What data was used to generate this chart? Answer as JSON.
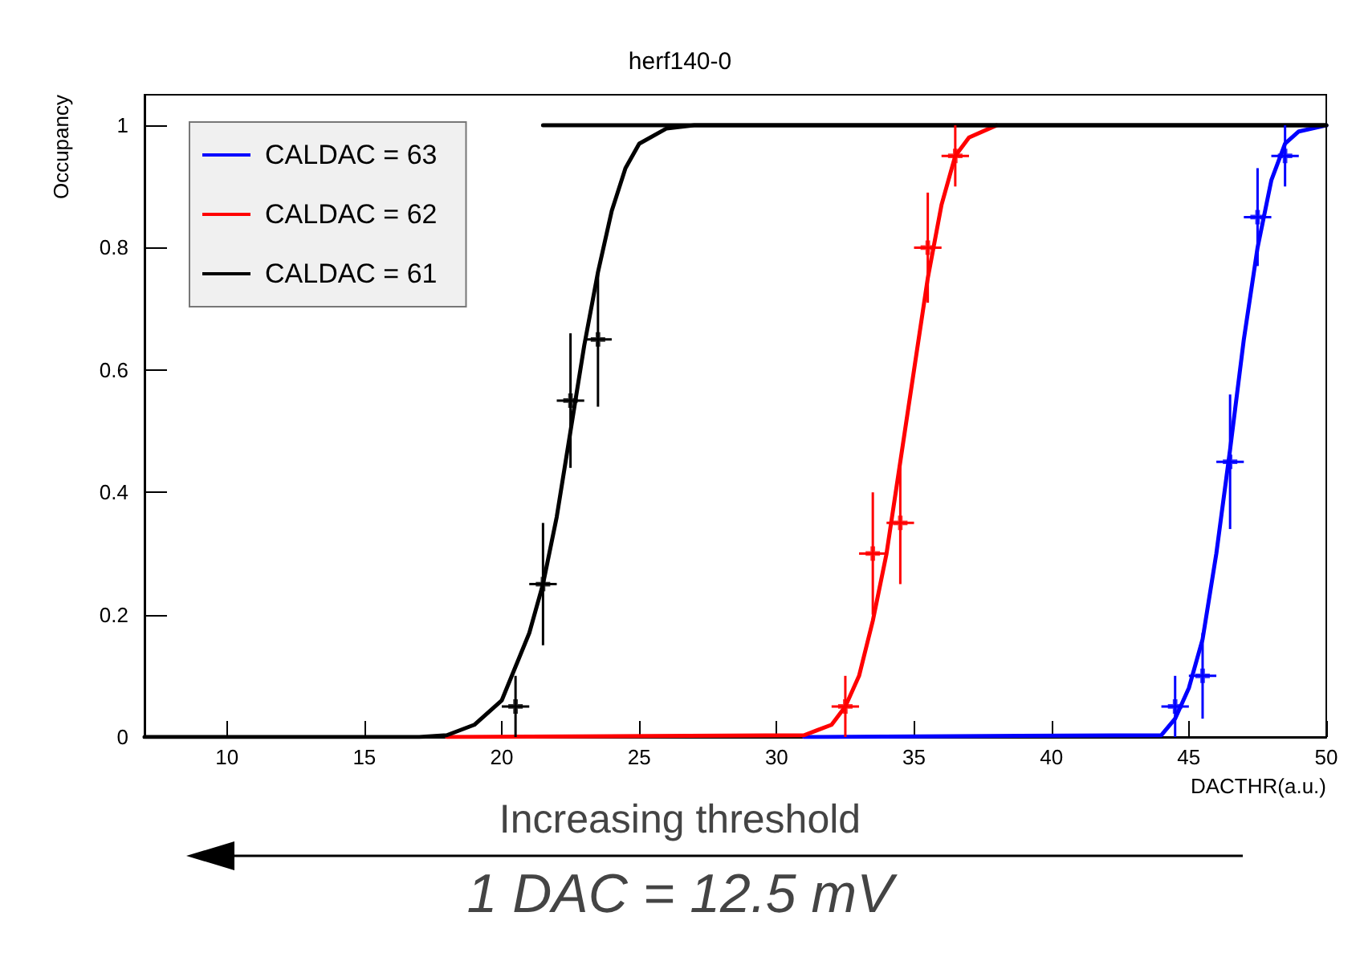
{
  "chart_data": {
    "type": "line",
    "title": "herf140-0",
    "xlabel": "DACTHR(a.u.)",
    "ylabel": "Occupancy",
    "xlim": [
      7,
      50
    ],
    "xticks": [
      10,
      15,
      20,
      25,
      30,
      35,
      40,
      45,
      50
    ],
    "ylim": [
      0,
      1.05
    ],
    "yticks": [
      0,
      0.2,
      0.4,
      0.6,
      0.8,
      1
    ],
    "grid": false,
    "legend": "top left",
    "marker": "none",
    "line_style": "solid",
    "annotations": [
      "Increasing threshold",
      "1 DAC = 12.5 mV"
    ],
    "series": [
      {
        "type": "line",
        "name": "CALDAC = 63",
        "color": "#0000ff",
        "x": [
          31,
          44,
          44.5,
          45,
          45.5,
          46,
          46.5,
          47,
          47.5,
          48,
          48.5,
          49,
          50
        ],
        "values": [
          0,
          0.003,
          0.03,
          0.08,
          0.16,
          0.3,
          0.47,
          0.65,
          0.8,
          0.91,
          0.97,
          0.99,
          1
        ]
      },
      {
        "type": "line",
        "name": "CALDAC = 62",
        "color": "#ff0000",
        "x": [
          18,
          31,
          32,
          32.5,
          33,
          33.5,
          34,
          34.5,
          35,
          35.5,
          36,
          36.5,
          37,
          38
        ],
        "values": [
          0,
          0.003,
          0.02,
          0.05,
          0.1,
          0.19,
          0.3,
          0.45,
          0.6,
          0.75,
          0.87,
          0.95,
          0.98,
          1
        ]
      },
      {
        "type": "line",
        "name": "CALDAC = 61",
        "color": "#000000",
        "x": [
          7,
          17,
          18,
          19,
          20,
          21,
          21.5,
          22,
          22.5,
          23,
          23.5,
          24,
          24.5,
          25,
          26,
          27,
          50
        ],
        "values": [
          0,
          0,
          0.003,
          0.02,
          0.06,
          0.17,
          0.25,
          0.36,
          0.5,
          0.64,
          0.76,
          0.86,
          0.93,
          0.97,
          0.995,
          1,
          1
        ]
      },
      {
        "type": "line",
        "color": "#000000",
        "x": [
          21.5,
          50
        ],
        "values": [
          1,
          1
        ]
      },
      {
        "type": "scatter",
        "marker": "cross",
        "color": "#0000ff",
        "x": [
          44.5,
          45.5,
          46.5,
          47.5,
          48.5
        ],
        "values": [
          0.05,
          0.1,
          0.45,
          0.85,
          0.95
        ],
        "errors": [
          0.05,
          0.07,
          0.11,
          0.08,
          0.05
        ],
        "xerrors": [
          0.5,
          0.5,
          0.5,
          0.5,
          0.5
        ]
      },
      {
        "type": "scatter",
        "marker": "cross",
        "color": "#ff0000",
        "x": [
          32.5,
          33.5,
          34.5,
          35.5,
          36.5
        ],
        "values": [
          0.05,
          0.3,
          0.35,
          0.8,
          0.95
        ],
        "errors": [
          0.05,
          0.1,
          0.1,
          0.09,
          0.05
        ],
        "xerrors": [
          0.5,
          0.5,
          0.5,
          0.5,
          0.5
        ]
      },
      {
        "type": "scatter",
        "marker": "cross",
        "color": "#000000",
        "x": [
          20.5,
          21.5,
          22.5,
          23.5
        ],
        "values": [
          0.05,
          0.25,
          0.55,
          0.65
        ],
        "errors": [
          0.05,
          0.1,
          0.11,
          0.11
        ],
        "xerrors": [
          0.5,
          0.5,
          0.5,
          0.5
        ]
      }
    ]
  }
}
